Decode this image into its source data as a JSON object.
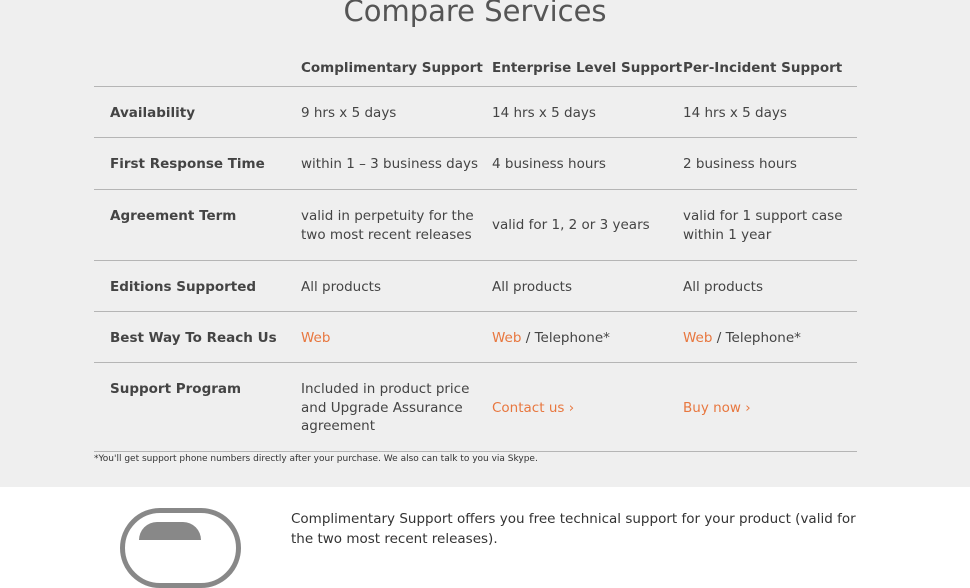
{
  "title": "Compare Services",
  "columns": [
    "Complimentary Support",
    "Enterprise Level Support",
    "Per-Incident Support"
  ],
  "rows": [
    {
      "label": "Availability",
      "values": [
        "9 hrs x 5 days",
        "14 hrs x 5 days",
        "14 hrs x 5 days"
      ]
    },
    {
      "label": "First Response Time",
      "values": [
        "within 1 – 3 business days",
        "4 business hours",
        "2 business hours"
      ]
    },
    {
      "label": "Agreement Term",
      "values": [
        "valid in perpetuity for the two most recent releases",
        "valid for 1, 2 or 3 years",
        "valid for 1 support case within 1 year"
      ]
    },
    {
      "label": "Editions Supported",
      "values": [
        "All products",
        "All products",
        "All products"
      ]
    },
    {
      "label": "Best Way To Reach Us",
      "web": "Web",
      "phone": " / Telephone*"
    },
    {
      "label": "Support Program",
      "values": [
        "Included in product price and Upgrade Assurance agreement",
        "Contact us ›",
        "Buy now ›"
      ]
    }
  ],
  "footnote": "*You'll get support phone numbers directly after your purchase. We also can talk to you via Skype.",
  "description": "Complimentary Support offers you free technical support for your product (valid for the two most recent releases).",
  "colors": {
    "accent": "#e8773f",
    "band": "#efefef"
  }
}
